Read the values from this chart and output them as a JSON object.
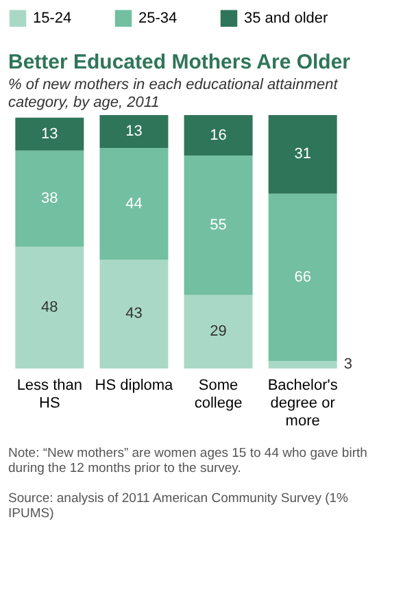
{
  "chart_data": {
    "type": "bar",
    "stacked": true,
    "title": "Better Educated Mothers Are Older",
    "subtitle": "% of new mothers in each educational attainment category, by age, 2011",
    "categories": [
      "Less than HS",
      "HS diploma",
      "Some college",
      "Bachelor's degree or more"
    ],
    "series": [
      {
        "name": "15-24",
        "color": "#a9d9c6",
        "values": [
          48,
          43,
          29,
          3
        ]
      },
      {
        "name": "25-34",
        "color": "#72bfa1",
        "values": [
          38,
          44,
          55,
          66
        ]
      },
      {
        "name": "35 and older",
        "color": "#2f7559",
        "values": [
          13,
          13,
          16,
          31
        ]
      }
    ],
    "data_labels": true,
    "legend": "top",
    "annotations": [
      "Note: “New mothers” are women ages 15 to 44 who gave birth during the 12 months prior to the survey.",
      "Source: analysis of 2011 American Community Survey (1% IPUMS)"
    ]
  }
}
